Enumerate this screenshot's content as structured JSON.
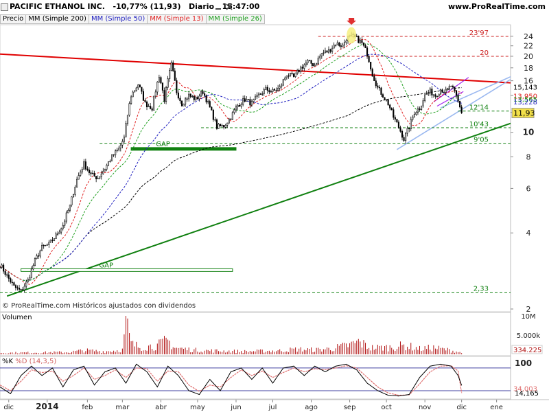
{
  "header": {
    "title": "PACIFIC ETHANOL INC.",
    "change": "-10,77% (11,93)",
    "period": "Diario",
    "time": "15:47:00",
    "url": "www.ProRealTime.com"
  },
  "legend": {
    "price": "Precio",
    "ma200": "MM (Simple 200)",
    "ma50": "MM (Simple 50)",
    "ma13": "MM (Simple 13)",
    "ma26": "MM (Simple 26)"
  },
  "colors": {
    "ma200": "#000000",
    "ma50": "#2020c0",
    "ma13": "#e02020",
    "ma26": "#20a020",
    "trend_red": "#e00000",
    "trend_green": "#108010",
    "channel": "#9ab8f0",
    "channel_purple": "#a020f0"
  },
  "footer": "© ProRealTime.com  Históricos ajustados con dividendos",
  "volume_panel": {
    "label": "Volumen",
    "ticks": [
      "10M",
      "5.000k"
    ],
    "last": "334.225"
  },
  "stoch_panel": {
    "label_k": "%K",
    "label_d": "%D (14,3,5)",
    "ticks": [
      "100"
    ],
    "k_last": "34,003",
    "d_last": "14,165",
    "k_level_value": 34.003,
    "d_level_value": 14.165
  },
  "chart_data": {
    "type": "line",
    "title": "PACIFIC ETHANOL INC.",
    "y_scale": "log",
    "ylim": [
      2,
      26
    ],
    "y_ticks": [
      2,
      4,
      6,
      8,
      10,
      12,
      14,
      16,
      18,
      20,
      22,
      24
    ],
    "y_tick_labels": [
      "2",
      "4",
      "6",
      "8",
      "10",
      "",
      "",
      "16",
      "18",
      "20",
      "22",
      "24"
    ],
    "x_labels": [
      {
        "label": "dic",
        "i": 5
      },
      {
        "label": "2014",
        "i": 27
      },
      {
        "label": "feb",
        "i": 50
      },
      {
        "label": "mar",
        "i": 70
      },
      {
        "label": "abr",
        "i": 92
      },
      {
        "label": "may",
        "i": 113
      },
      {
        "label": "jun",
        "i": 135
      },
      {
        "label": "jul",
        "i": 156
      },
      {
        "label": "ago",
        "i": 178
      },
      {
        "label": "sep",
        "i": 200
      },
      {
        "label": "oct",
        "i": 221
      },
      {
        "label": "nov",
        "i": 243
      },
      {
        "label": "dic",
        "i": 264
      },
      {
        "label": "ene",
        "i": 284
      }
    ],
    "n_days": 293,
    "last_index": 264,
    "price_path": [
      [
        0,
        3.0
      ],
      [
        4,
        2.7
      ],
      [
        8,
        2.45
      ],
      [
        12,
        2.35
      ],
      [
        16,
        2.6
      ],
      [
        20,
        3.1
      ],
      [
        24,
        3.5
      ],
      [
        28,
        3.6
      ],
      [
        32,
        3.9
      ],
      [
        36,
        4.3
      ],
      [
        40,
        5.1
      ],
      [
        44,
        6.5
      ],
      [
        48,
        7.5
      ],
      [
        52,
        6.8
      ],
      [
        56,
        6.6
      ],
      [
        60,
        7.2
      ],
      [
        64,
        8.0
      ],
      [
        68,
        8.6
      ],
      [
        71,
        9.5
      ],
      [
        75,
        14.0
      ],
      [
        79,
        15.5
      ],
      [
        83,
        13.0
      ],
      [
        87,
        12.5
      ],
      [
        91,
        16.8
      ],
      [
        94,
        13.5
      ],
      [
        98,
        18.5
      ],
      [
        101,
        14.5
      ],
      [
        104,
        13.0
      ],
      [
        108,
        14.0
      ],
      [
        112,
        13.5
      ],
      [
        116,
        14.5
      ],
      [
        120,
        12.5
      ],
      [
        124,
        10.5
      ],
      [
        128,
        10.6
      ],
      [
        132,
        11.5
      ],
      [
        136,
        12.8
      ],
      [
        140,
        13.5
      ],
      [
        144,
        13.0
      ],
      [
        148,
        14.0
      ],
      [
        152,
        14.8
      ],
      [
        156,
        14.5
      ],
      [
        160,
        15.0
      ],
      [
        164,
        17.0
      ],
      [
        168,
        16.5
      ],
      [
        172,
        18.0
      ],
      [
        176,
        19.0
      ],
      [
        180,
        18.5
      ],
      [
        184,
        20.5
      ],
      [
        188,
        21.0
      ],
      [
        192,
        22.5
      ],
      [
        196,
        22.0
      ],
      [
        198,
        23.5
      ],
      [
        201,
        24.0
      ],
      [
        204,
        23.5
      ],
      [
        207,
        22.5
      ],
      [
        210,
        20.5
      ],
      [
        213,
        17.0
      ],
      [
        216,
        15.0
      ],
      [
        219,
        14.0
      ],
      [
        222,
        13.0
      ],
      [
        225,
        11.5
      ],
      [
        228,
        10.5
      ],
      [
        231,
        9.4
      ],
      [
        234,
        10.5
      ],
      [
        237,
        12.0
      ],
      [
        240,
        12.5
      ],
      [
        243,
        14.0
      ],
      [
        246,
        14.5
      ],
      [
        249,
        14.0
      ],
      [
        252,
        14.8
      ],
      [
        255,
        14.5
      ],
      [
        258,
        15.3
      ],
      [
        261,
        13.8
      ],
      [
        264,
        11.93
      ]
    ],
    "gap_zones": [
      {
        "label": "GAP",
        "i0": 75,
        "i1": 135,
        "y": 8.6
      },
      {
        "label": "GAP",
        "i0": 12,
        "i1": 133,
        "y": 2.85
      }
    ],
    "h_levels": [
      {
        "label": "23'97",
        "value": 23.97,
        "i0": 182,
        "color": "#cc2020"
      },
      {
        "label": "20",
        "value": 20.0,
        "i0": 193,
        "color": "#cc2020"
      },
      {
        "label": "12'14",
        "value": 12.14,
        "i0": 262,
        "color": "#108010"
      },
      {
        "label": "10'43",
        "value": 10.43,
        "i0": 115,
        "color": "#108010"
      },
      {
        "label": "9'05",
        "value": 9.05,
        "i0": 57,
        "color": "#108010"
      },
      {
        "label": "2,33",
        "value": 2.33,
        "i0": 0,
        "color": "#108010"
      }
    ],
    "right_labels": [
      {
        "label": "15,143",
        "value": 15.143,
        "color": "#000000"
      },
      {
        "label": "13,950",
        "value": 13.95,
        "color": "#e02020"
      },
      {
        "label": "13,565",
        "value": 13.565,
        "color": "#20a020"
      },
      {
        "label": "13,228",
        "value": 13.228,
        "color": "#2020c0"
      },
      {
        "label": "11,93",
        "value": 11.93,
        "color": "#000000",
        "highlight": true
      }
    ],
    "trendlines": [
      {
        "name": "resistance",
        "p0": [
          0,
          20.4
        ],
        "p1": [
          292,
          15.7
        ],
        "color": "#e00000"
      },
      {
        "name": "support",
        "p0": [
          4,
          2.25
        ],
        "p1": [
          292,
          10.85
        ],
        "color": "#108010"
      }
    ],
    "channel_lines": [
      {
        "p0": [
          227,
          8.55
        ],
        "p1": [
          292,
          16.2
        ],
        "color": "#9ab8f0"
      },
      {
        "p0": [
          252,
          12.5
        ],
        "p1": [
          292,
          16.6
        ],
        "color": "#9ab8f0"
      }
    ],
    "purple_lines": [
      {
        "p0": [
          248,
          13.2
        ],
        "p1": [
          268,
          16.5
        ]
      },
      {
        "p0": [
          250,
          12.7
        ],
        "p1": [
          265,
          14.5
        ]
      }
    ],
    "peak_arrow_index": 201,
    "volume_m": [
      [
        0,
        0.4
      ],
      [
        20,
        0.5
      ],
      [
        40,
        0.6
      ],
      [
        48,
        1.1
      ],
      [
        60,
        0.8
      ],
      [
        70,
        1.2
      ],
      [
        72,
        9.0
      ],
      [
        75,
        2.8
      ],
      [
        80,
        2.0
      ],
      [
        90,
        2.4
      ],
      [
        96,
        3.8
      ],
      [
        100,
        1.8
      ],
      [
        110,
        1.2
      ],
      [
        120,
        1.0
      ],
      [
        130,
        0.9
      ],
      [
        140,
        0.8
      ],
      [
        150,
        0.9
      ],
      [
        160,
        1.0
      ],
      [
        170,
        1.4
      ],
      [
        180,
        1.2
      ],
      [
        190,
        1.6
      ],
      [
        200,
        2.5
      ],
      [
        205,
        3.4
      ],
      [
        212,
        1.8
      ],
      [
        222,
        1.9
      ],
      [
        232,
        2.4
      ],
      [
        240,
        1.5
      ],
      [
        248,
        1.8
      ],
      [
        255,
        1.3
      ],
      [
        262,
        0.7
      ],
      [
        264,
        0.33
      ]
    ],
    "stoch_k_path": [
      [
        0,
        30
      ],
      [
        6,
        12
      ],
      [
        12,
        60
      ],
      [
        18,
        85
      ],
      [
        24,
        60
      ],
      [
        30,
        80
      ],
      [
        36,
        30
      ],
      [
        42,
        75
      ],
      [
        48,
        85
      ],
      [
        54,
        35
      ],
      [
        60,
        70
      ],
      [
        66,
        80
      ],
      [
        72,
        40
      ],
      [
        78,
        90
      ],
      [
        84,
        70
      ],
      [
        90,
        30
      ],
      [
        96,
        85
      ],
      [
        102,
        60
      ],
      [
        108,
        20
      ],
      [
        114,
        10
      ],
      [
        120,
        50
      ],
      [
        126,
        20
      ],
      [
        132,
        70
      ],
      [
        138,
        80
      ],
      [
        144,
        50
      ],
      [
        150,
        80
      ],
      [
        156,
        40
      ],
      [
        162,
        80
      ],
      [
        168,
        85
      ],
      [
        174,
        60
      ],
      [
        180,
        85
      ],
      [
        186,
        70
      ],
      [
        192,
        85
      ],
      [
        198,
        90
      ],
      [
        204,
        75
      ],
      [
        210,
        40
      ],
      [
        216,
        20
      ],
      [
        222,
        8
      ],
      [
        228,
        6
      ],
      [
        234,
        10
      ],
      [
        240,
        55
      ],
      [
        246,
        85
      ],
      [
        252,
        90
      ],
      [
        258,
        85
      ],
      [
        262,
        60
      ],
      [
        264,
        34
      ]
    ],
    "stoch_d_path": [
      [
        0,
        35
      ],
      [
        6,
        20
      ],
      [
        12,
        45
      ],
      [
        18,
        75
      ],
      [
        24,
        68
      ],
      [
        30,
        72
      ],
      [
        36,
        45
      ],
      [
        42,
        60
      ],
      [
        48,
        80
      ],
      [
        54,
        50
      ],
      [
        60,
        60
      ],
      [
        66,
        75
      ],
      [
        72,
        55
      ],
      [
        78,
        80
      ],
      [
        84,
        78
      ],
      [
        90,
        45
      ],
      [
        96,
        72
      ],
      [
        102,
        70
      ],
      [
        108,
        35
      ],
      [
        114,
        18
      ],
      [
        120,
        35
      ],
      [
        126,
        30
      ],
      [
        132,
        55
      ],
      [
        138,
        75
      ],
      [
        144,
        60
      ],
      [
        150,
        72
      ],
      [
        156,
        55
      ],
      [
        162,
        68
      ],
      [
        168,
        80
      ],
      [
        174,
        70
      ],
      [
        180,
        78
      ],
      [
        186,
        76
      ],
      [
        192,
        80
      ],
      [
        198,
        86
      ],
      [
        204,
        80
      ],
      [
        210,
        55
      ],
      [
        216,
        30
      ],
      [
        222,
        14
      ],
      [
        228,
        8
      ],
      [
        234,
        9
      ],
      [
        240,
        38
      ],
      [
        246,
        70
      ],
      [
        252,
        85
      ],
      [
        258,
        86
      ],
      [
        262,
        72
      ],
      [
        264,
        14
      ]
    ]
  }
}
